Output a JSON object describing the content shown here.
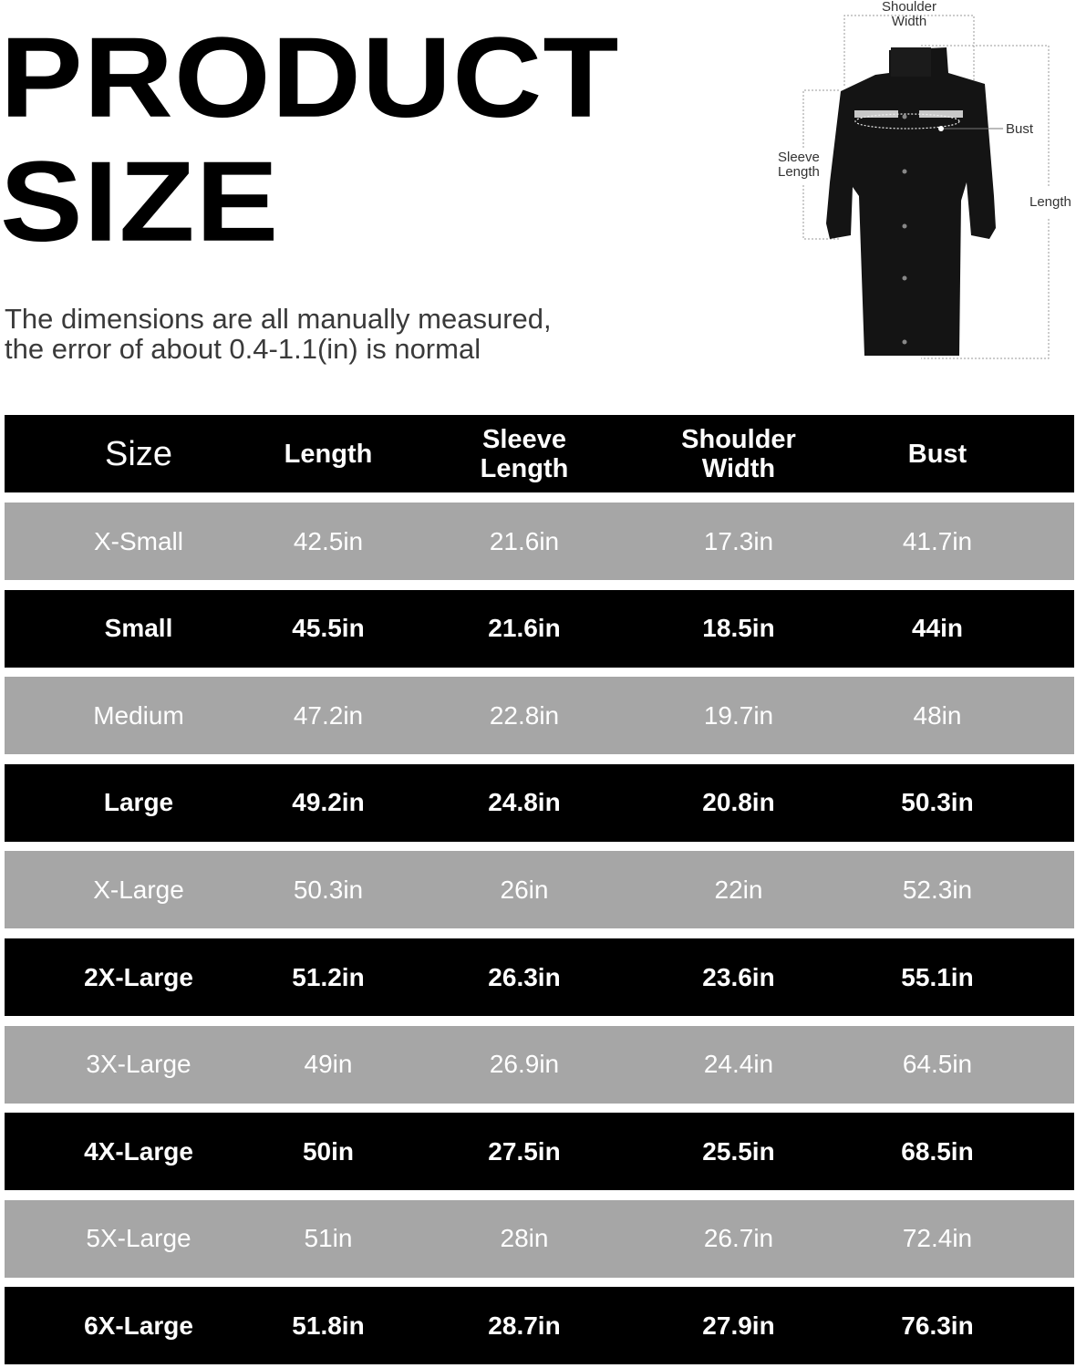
{
  "title": {
    "line1": "PRODUCT",
    "line2": "SIZE"
  },
  "note": {
    "line1": "The dimensions are all manually measured,",
    "line2": "the error of about 0.4-1.1(in) is normal"
  },
  "diagram": {
    "image": "black-long-raincoat-with-reflective-stripe",
    "labels": {
      "shoulder_l1": "Shoulder",
      "shoulder_l2": "Width",
      "bust": "Bust",
      "sleeve_l1": "Sleeve",
      "sleeve_l2": "Length",
      "length": "Length"
    }
  },
  "colors": {
    "dark_row": "#000000",
    "light_row": "#a6a6a6",
    "text": "#ffffff"
  },
  "table": {
    "header_lines": [
      [
        "Size"
      ],
      [
        "Length"
      ],
      [
        "Sleeve",
        "Length"
      ],
      [
        "Shoulder",
        "Width"
      ],
      [
        "Bust"
      ]
    ],
    "rows": [
      [
        "X-Small",
        "42.5in",
        "21.6in",
        "17.3in",
        "41.7in"
      ],
      [
        "Small",
        "45.5in",
        "21.6in",
        "18.5in",
        "44in"
      ],
      [
        "Medium",
        "47.2in",
        "22.8in",
        "19.7in",
        "48in"
      ],
      [
        "Large",
        "49.2in",
        "24.8in",
        "20.8in",
        "50.3in"
      ],
      [
        "X-Large",
        "50.3in",
        "26in",
        "22in",
        "52.3in"
      ],
      [
        "2X-Large",
        "51.2in",
        "26.3in",
        "23.6in",
        "55.1in"
      ],
      [
        "3X-Large",
        "49in",
        "26.9in",
        "24.4in",
        "64.5in"
      ],
      [
        "4X-Large",
        "50in",
        "27.5in",
        "25.5in",
        "68.5in"
      ],
      [
        "5X-Large",
        "51in",
        "28in",
        "26.7in",
        "72.4in"
      ],
      [
        "6X-Large",
        "51.8in",
        "28.7in",
        "27.9in",
        "76.3in"
      ]
    ]
  }
}
